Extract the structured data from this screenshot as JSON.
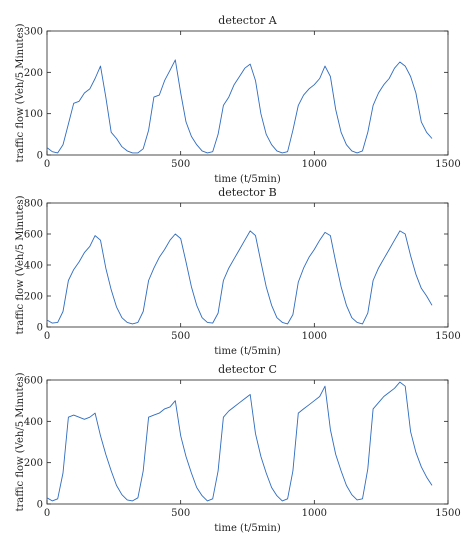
{
  "colors": {
    "series": "#2f6cc0",
    "axis": "#222222"
  },
  "chart_data": [
    {
      "type": "line",
      "title": "detector A",
      "xlabel": "time (t/5min)",
      "ylabel": "traffic flow (Veh/5 Minutes)",
      "xlim": [
        0,
        1500
      ],
      "ylim": [
        0,
        300
      ],
      "xticks": [
        0,
        500,
        1000,
        1500
      ],
      "yticks": [
        0,
        100,
        200,
        300
      ],
      "grid": false,
      "series": [
        {
          "x": [
            0,
            20,
            40,
            60,
            80,
            100,
            120,
            140,
            160,
            180,
            200,
            220,
            240,
            260,
            280,
            300,
            320,
            340,
            360,
            380,
            400,
            420,
            440,
            460,
            480,
            500,
            520,
            540,
            560,
            580,
            600,
            620,
            640,
            660,
            680,
            700,
            720,
            740,
            760,
            780,
            800,
            820,
            840,
            860,
            880,
            900,
            920,
            940,
            960,
            980,
            1000,
            1020,
            1040,
            1060,
            1080,
            1100,
            1120,
            1140,
            1160,
            1180,
            1200,
            1220,
            1240,
            1260,
            1280,
            1300,
            1320,
            1340,
            1360,
            1380,
            1400,
            1420,
            1440
          ],
          "y": [
            18,
            8,
            5,
            25,
            75,
            125,
            130,
            150,
            160,
            185,
            215,
            140,
            55,
            40,
            20,
            10,
            5,
            5,
            15,
            60,
            140,
            145,
            180,
            205,
            230,
            150,
            80,
            45,
            25,
            10,
            5,
            8,
            50,
            120,
            140,
            170,
            190,
            210,
            220,
            180,
            100,
            50,
            25,
            10,
            5,
            8,
            60,
            120,
            145,
            160,
            170,
            185,
            215,
            190,
            110,
            55,
            25,
            10,
            5,
            10,
            55,
            120,
            150,
            170,
            185,
            210,
            225,
            215,
            190,
            150,
            80,
            55,
            40
          ]
        }
      ]
    },
    {
      "type": "line",
      "title": "detector B",
      "xlabel": "time (t/5min)",
      "ylabel": "traffic flow (Veh/5 Minutes)",
      "xlim": [
        0,
        1500
      ],
      "ylim": [
        0,
        800
      ],
      "xticks": [
        0,
        500,
        1000,
        1500
      ],
      "yticks": [
        0,
        200,
        400,
        600,
        800
      ],
      "grid": false,
      "series": [
        {
          "x": [
            0,
            20,
            40,
            60,
            80,
            100,
            120,
            140,
            160,
            180,
            200,
            220,
            240,
            260,
            280,
            300,
            320,
            340,
            360,
            380,
            400,
            420,
            440,
            460,
            480,
            500,
            520,
            540,
            560,
            580,
            600,
            620,
            640,
            660,
            680,
            700,
            720,
            740,
            760,
            780,
            800,
            820,
            840,
            860,
            880,
            900,
            920,
            940,
            960,
            980,
            1000,
            1020,
            1040,
            1060,
            1080,
            1100,
            1120,
            1140,
            1160,
            1180,
            1200,
            1220,
            1240,
            1260,
            1280,
            1300,
            1320,
            1340,
            1360,
            1380,
            1400,
            1420,
            1440
          ],
          "y": [
            45,
            25,
            30,
            100,
            300,
            370,
            420,
            480,
            520,
            590,
            560,
            380,
            240,
            130,
            60,
            30,
            20,
            30,
            100,
            300,
            380,
            450,
            500,
            560,
            600,
            570,
            420,
            260,
            140,
            60,
            30,
            25,
            90,
            300,
            380,
            440,
            500,
            560,
            620,
            590,
            420,
            260,
            140,
            60,
            30,
            20,
            80,
            290,
            380,
            450,
            500,
            560,
            610,
            590,
            420,
            260,
            140,
            60,
            30,
            20,
            90,
            300,
            380,
            440,
            500,
            560,
            620,
            600,
            460,
            340,
            250,
            200,
            140
          ]
        }
      ]
    },
    {
      "type": "line",
      "title": "detector C",
      "xlabel": "time (t/5min)",
      "ylabel": "traffic flow (Veh/5 Minutes)",
      "xlim": [
        0,
        1500
      ],
      "ylim": [
        0,
        600
      ],
      "xticks": [
        0,
        500,
        1000,
        1500
      ],
      "yticks": [
        0,
        200,
        400,
        600
      ],
      "grid": false,
      "series": [
        {
          "x": [
            0,
            20,
            40,
            60,
            80,
            100,
            120,
            140,
            160,
            180,
            200,
            220,
            240,
            260,
            280,
            300,
            320,
            340,
            360,
            380,
            400,
            420,
            440,
            460,
            480,
            500,
            520,
            540,
            560,
            580,
            600,
            620,
            640,
            660,
            680,
            700,
            720,
            740,
            760,
            780,
            800,
            820,
            840,
            860,
            880,
            900,
            920,
            940,
            960,
            980,
            1000,
            1020,
            1040,
            1060,
            1080,
            1100,
            1120,
            1140,
            1160,
            1180,
            1200,
            1220,
            1240,
            1260,
            1280,
            1300,
            1320,
            1340,
            1360,
            1380,
            1400,
            1420,
            1440
          ],
          "y": [
            30,
            15,
            25,
            150,
            420,
            430,
            420,
            410,
            420,
            440,
            330,
            240,
            160,
            90,
            45,
            20,
            15,
            30,
            160,
            420,
            430,
            440,
            460,
            470,
            500,
            330,
            230,
            150,
            80,
            40,
            15,
            25,
            160,
            420,
            450,
            470,
            490,
            510,
            530,
            340,
            230,
            150,
            80,
            40,
            15,
            25,
            160,
            440,
            460,
            480,
            500,
            520,
            570,
            360,
            240,
            160,
            90,
            45,
            20,
            25,
            170,
            460,
            490,
            520,
            540,
            560,
            590,
            570,
            350,
            250,
            180,
            130,
            90
          ]
        }
      ]
    }
  ]
}
